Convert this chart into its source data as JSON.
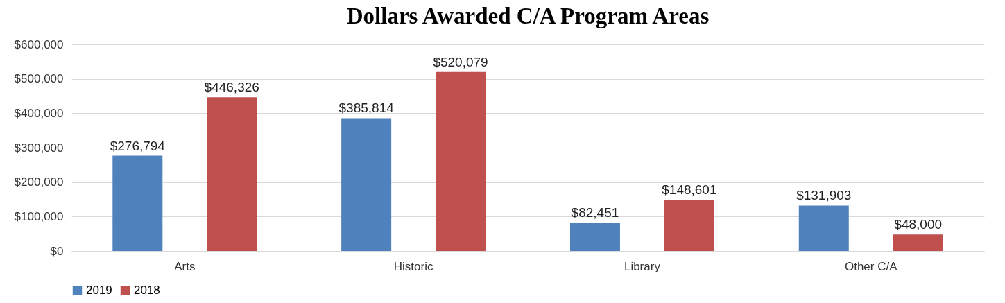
{
  "chart_data": {
    "type": "bar",
    "title": "Dollars Awarded C/A Program Areas",
    "categories": [
      "Arts",
      "Historic",
      "Library",
      "Other C/A"
    ],
    "series": [
      {
        "name": "2019",
        "color": "#4f81bd",
        "values": [
          276794,
          385814,
          82451,
          131903
        ],
        "value_labels": [
          "$276,794",
          "$385,814",
          "$82,451",
          "$131,903"
        ]
      },
      {
        "name": "2018",
        "color": "#c0504d",
        "values": [
          446326,
          520079,
          148601,
          48000
        ],
        "value_labels": [
          "$446,326",
          "$520,079",
          "$148,601",
          "$48,000"
        ]
      }
    ],
    "ylim": [
      0,
      600000
    ],
    "yticks": [
      {
        "value": 0,
        "label": "$0"
      },
      {
        "value": 100000,
        "label": "$100,000"
      },
      {
        "value": 200000,
        "label": "$200,000"
      },
      {
        "value": 300000,
        "label": "$300,000"
      },
      {
        "value": 400000,
        "label": "$400,000"
      },
      {
        "value": 500000,
        "label": "$500,000"
      },
      {
        "value": 600000,
        "label": "$600,000"
      }
    ],
    "grid": "y",
    "legend": "bottom"
  }
}
